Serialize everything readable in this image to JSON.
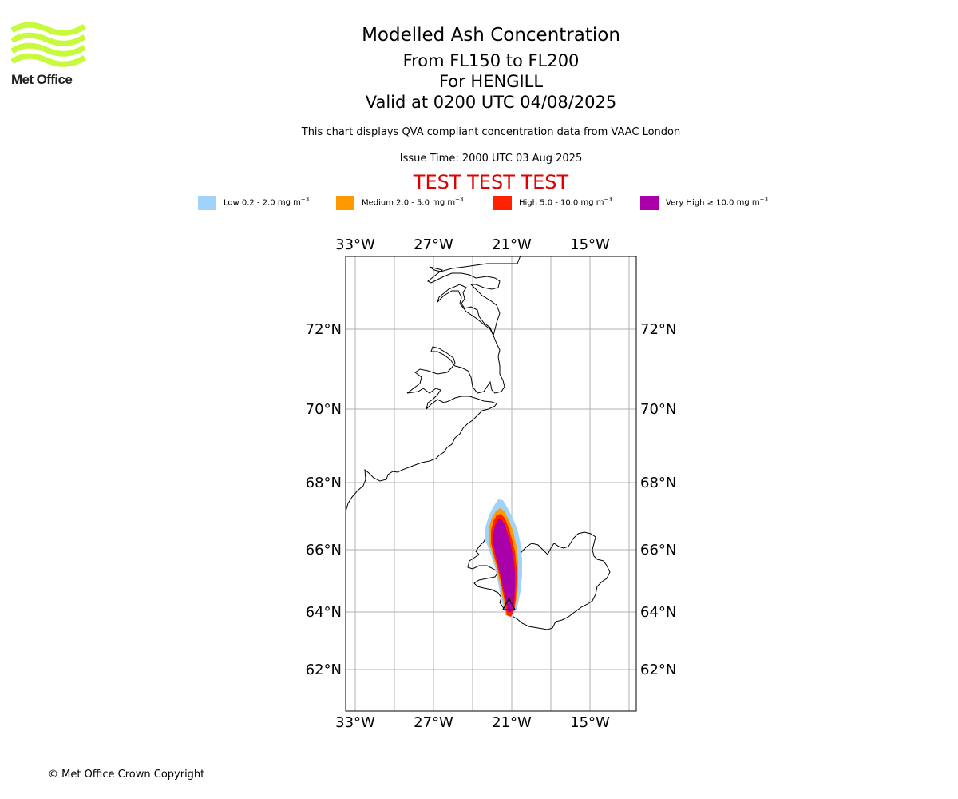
{
  "branding": {
    "logo_text": "Met Office",
    "logo_color": "#c8fa3c"
  },
  "header": {
    "title": "Modelled Ash Concentration",
    "flight_levels": "From FL150 to FL200",
    "volcano": "For HENGILL",
    "valid_time": "Valid at 0200 UTC 04/08/2025",
    "description": "This chart displays QVA compliant concentration data from VAAC London",
    "issue_time": "Issue Time: 2000 UTC 03 Aug 2025",
    "test_banner": "TEST TEST TEST",
    "test_banner_color": "#e00000"
  },
  "legend": {
    "unit": "mg m",
    "unit_exponent": "−3",
    "items": [
      {
        "label": "Low 0.2 - 2.0",
        "color": "#a0d2fa"
      },
      {
        "label": "Medium 2.0 - 5.0",
        "color": "#ff9900"
      },
      {
        "label": "High 5.0 - 10.0",
        "color": "#ff2200"
      },
      {
        "label": "Very High ≥ 10.0",
        "color": "#aa00aa"
      }
    ]
  },
  "map": {
    "longitude_ticks": [
      "33°W",
      "27°W",
      "21°W",
      "15°W"
    ],
    "latitude_ticks": [
      "72°N",
      "70°N",
      "68°N",
      "66°N",
      "64°N",
      "62°N"
    ],
    "gridlines": true,
    "volcano_marker": "triangle",
    "features": [
      "Greenland east coast",
      "Iceland"
    ]
  },
  "footer": {
    "copyright": "© Met Office Crown Copyright"
  }
}
